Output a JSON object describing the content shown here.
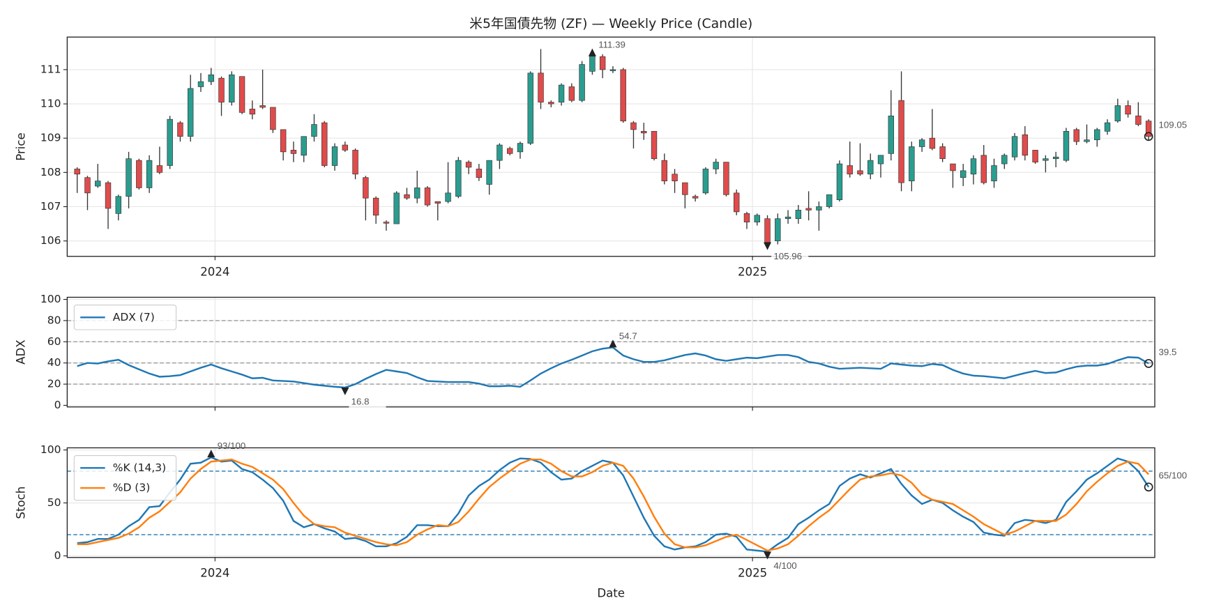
{
  "chart_data": [
    {
      "type": "candlestick",
      "title": "米5年国債先物 (ZF) — Weekly Price (Candle)",
      "ylabel": "Price",
      "up_color": "#2a9d8f",
      "down_color": "#e04b4b",
      "wick_color": "#333333",
      "grid": true,
      "xlim": [
        -0.97,
        104.6
      ],
      "xticks": [
        {
          "value": 13.38,
          "label": "2024"
        },
        {
          "value": 65.55,
          "label": "2025"
        }
      ],
      "ylim": [
        105.55,
        111.95
      ],
      "yticks": [
        106,
        107,
        108,
        109,
        110,
        111
      ],
      "open": [
        108.1,
        107.85,
        107.6,
        107.7,
        106.8,
        107.3,
        108.35,
        107.55,
        108.2,
        108.2,
        109.45,
        109.05,
        110.5,
        110.65,
        110.75,
        110.05,
        110.8,
        109.85,
        109.95,
        109.9,
        109.25,
        108.65,
        108.5,
        109.05,
        109.45,
        108.2,
        108.8,
        108.65,
        107.85,
        107.25,
        106.55,
        106.5,
        107.35,
        107.25,
        107.55,
        107.15,
        107.15,
        107.3,
        108.3,
        108.1,
        107.65,
        108.35,
        108.7,
        108.6,
        108.85,
        110.9,
        110.05,
        110.05,
        110.5,
        110.1,
        110.95,
        111.38,
        110.97,
        111.0,
        109.45,
        109.2,
        109.2,
        108.35,
        107.95,
        107.7,
        107.3,
        107.4,
        108.1,
        108.3,
        107.4,
        106.8,
        106.55,
        106.65,
        106.0,
        106.65,
        106.65,
        106.95,
        106.9,
        107.0,
        107.2,
        108.2,
        108.05,
        107.95,
        108.25,
        108.55,
        110.1,
        107.75,
        108.75,
        109.0,
        108.75,
        108.25,
        107.85,
        107.95,
        108.5,
        107.75,
        108.25,
        108.45,
        109.1,
        108.65,
        108.35,
        108.4,
        108.35,
        109.25,
        108.9,
        108.95,
        109.2,
        109.5,
        109.95,
        109.65,
        109.5
      ],
      "high": [
        108.15,
        107.9,
        108.25,
        107.75,
        107.35,
        108.6,
        108.4,
        108.5,
        108.75,
        109.65,
        109.5,
        110.85,
        110.9,
        111.05,
        110.8,
        110.95,
        110.8,
        110.1,
        111.0,
        109.9,
        109.25,
        108.9,
        109.05,
        109.7,
        109.5,
        108.85,
        108.9,
        108.7,
        107.9,
        107.3,
        106.6,
        107.45,
        107.55,
        108.05,
        107.6,
        107.15,
        108.3,
        108.45,
        108.35,
        108.25,
        108.35,
        108.85,
        108.75,
        108.9,
        110.95,
        111.6,
        110.1,
        110.6,
        110.6,
        111.25,
        111.6,
        111.45,
        111.1,
        111.05,
        109.5,
        109.45,
        109.2,
        108.55,
        108.1,
        107.7,
        107.35,
        108.15,
        108.4,
        108.3,
        107.5,
        106.85,
        106.8,
        106.75,
        106.8,
        106.9,
        107.05,
        107.45,
        107.15,
        107.35,
        108.35,
        108.9,
        108.85,
        108.55,
        108.5,
        110.4,
        110.95,
        108.9,
        109.0,
        109.85,
        108.85,
        108.25,
        108.25,
        108.5,
        108.8,
        108.4,
        108.55,
        109.15,
        109.35,
        108.65,
        108.5,
        108.6,
        109.3,
        109.3,
        109.4,
        109.3,
        109.55,
        110.15,
        110.1,
        110.05,
        109.55
      ],
      "low": [
        107.4,
        106.9,
        107.55,
        106.35,
        106.6,
        106.95,
        107.5,
        107.4,
        107.95,
        108.1,
        108.9,
        108.9,
        110.35,
        110.55,
        109.65,
        109.95,
        109.7,
        109.55,
        109.85,
        109.15,
        108.35,
        108.3,
        108.3,
        108.9,
        108.15,
        108.05,
        108.6,
        107.8,
        106.6,
        106.5,
        106.3,
        106.5,
        107.2,
        107.1,
        107.0,
        106.6,
        107.1,
        107.25,
        107.95,
        107.75,
        107.35,
        108.1,
        108.5,
        108.4,
        108.8,
        109.85,
        109.9,
        109.95,
        110.05,
        110.05,
        110.85,
        110.75,
        110.9,
        109.45,
        108.7,
        108.95,
        108.35,
        107.65,
        107.4,
        106.95,
        107.15,
        107.35,
        107.95,
        107.3,
        106.75,
        106.35,
        106.45,
        105.85,
        105.9,
        106.5,
        106.5,
        106.6,
        106.3,
        106.95,
        107.15,
        107.85,
        107.9,
        107.8,
        107.85,
        108.35,
        107.45,
        107.45,
        108.6,
        108.65,
        108.3,
        107.55,
        107.6,
        107.65,
        107.65,
        107.55,
        108.1,
        108.35,
        108.35,
        108.25,
        108.0,
        108.15,
        108.3,
        108.8,
        108.85,
        108.75,
        109.1,
        109.45,
        109.6,
        109.35,
        108.95
      ],
      "close": [
        107.95,
        107.4,
        107.75,
        106.95,
        107.3,
        108.4,
        107.55,
        108.35,
        108.0,
        109.55,
        109.05,
        110.45,
        110.65,
        110.85,
        110.05,
        110.85,
        109.75,
        109.7,
        109.9,
        109.25,
        108.6,
        108.55,
        109.05,
        109.4,
        108.2,
        108.75,
        108.65,
        107.95,
        107.25,
        106.75,
        106.52,
        107.4,
        107.25,
        107.55,
        107.05,
        107.1,
        107.4,
        108.35,
        108.15,
        107.85,
        108.35,
        108.8,
        108.55,
        108.85,
        110.9,
        110.05,
        110.0,
        110.55,
        110.1,
        111.15,
        111.39,
        111.0,
        111.0,
        109.5,
        109.25,
        109.15,
        108.4,
        107.75,
        107.75,
        107.35,
        107.25,
        108.1,
        108.3,
        107.35,
        106.85,
        106.55,
        106.75,
        105.96,
        106.65,
        106.7,
        106.9,
        106.9,
        107.0,
        107.35,
        108.25,
        107.95,
        107.95,
        108.35,
        108.5,
        109.65,
        107.7,
        108.75,
        108.95,
        108.7,
        108.4,
        108.05,
        108.05,
        108.4,
        107.7,
        108.2,
        108.5,
        109.05,
        108.5,
        108.3,
        108.4,
        108.45,
        109.2,
        108.9,
        108.95,
        109.25,
        109.45,
        109.95,
        109.7,
        109.4,
        109.05
      ],
      "annotations": {
        "max": "111.39",
        "min": "105.96",
        "last": "109.05"
      }
    },
    {
      "type": "line",
      "ylabel": "ADX",
      "grid": true,
      "legend": "upper left",
      "ylim": [
        -1.5,
        102
      ],
      "yticks": [
        0,
        20,
        40,
        60,
        80,
        100
      ],
      "hlines": {
        "values": [
          20,
          40,
          60,
          80
        ],
        "color": "#999999"
      },
      "series": [
        {
          "name": "ADX (7)",
          "color": "#1f77b4",
          "values": [
            37,
            40,
            39.5,
            41.5,
            43,
            38,
            34,
            30,
            27,
            27.5,
            28.5,
            32,
            35.5,
            38.5,
            35,
            32,
            29,
            25.5,
            26,
            23.5,
            23,
            22.5,
            21,
            19.5,
            18.5,
            17.5,
            16.8,
            20,
            25,
            29.5,
            33.5,
            32,
            30.5,
            26.5,
            23,
            22.5,
            22,
            22,
            22,
            20.5,
            18,
            18,
            18.5,
            17.5,
            23.5,
            30,
            35,
            39.5,
            43,
            47,
            51,
            53.5,
            54.7,
            47,
            43.5,
            41,
            41,
            42.5,
            45,
            47.5,
            49,
            47,
            43.5,
            42,
            43.5,
            45,
            44.5,
            46,
            47.5,
            47.5,
            45.5,
            41,
            39.5,
            36.5,
            34.5,
            35,
            35.5,
            35,
            34.5,
            39.5,
            38.5,
            37.5,
            37,
            39,
            38,
            33.5,
            30,
            28,
            27.5,
            26.5,
            25.5,
            28,
            30.5,
            32.5,
            30.5,
            31,
            34,
            36.5,
            37.5,
            37.5,
            39,
            42.5,
            45.5,
            45,
            39.5
          ]
        }
      ],
      "annotations": {
        "max": "54.7",
        "min": "16.8",
        "last": "39.5"
      }
    },
    {
      "type": "line",
      "ylabel": "Stoch",
      "xlabel": "Date",
      "grid": true,
      "legend": "upper left",
      "xticks": [
        {
          "value": 13.38,
          "label": "2024"
        },
        {
          "value": 65.55,
          "label": "2025"
        }
      ],
      "ylim": [
        -1.5,
        102
      ],
      "yticks": [
        0,
        50,
        100
      ],
      "hlines": {
        "values": [
          20,
          80
        ],
        "color": "#1f77b4"
      },
      "series": [
        {
          "name": "%K (14,3)",
          "color": "#1f77b4",
          "values": [
            12,
            13,
            16,
            16,
            20,
            28,
            34,
            46,
            47,
            60,
            72,
            87,
            88,
            93,
            89,
            90,
            82,
            79,
            72,
            64,
            52,
            33,
            27,
            30,
            26,
            23,
            16,
            17,
            14,
            9,
            9,
            12,
            18,
            29,
            29,
            28,
            28,
            40,
            57,
            66,
            72,
            81,
            88,
            92,
            91.5,
            88,
            79,
            72,
            73,
            80,
            85,
            90,
            88,
            76,
            56,
            36,
            19,
            9,
            6,
            8,
            9,
            13,
            20,
            21,
            18,
            6,
            5,
            4,
            11,
            17,
            30,
            36,
            43,
            49,
            66,
            73,
            77,
            74,
            78,
            82,
            68,
            57,
            49,
            53,
            50,
            43,
            37,
            32,
            22,
            20,
            19,
            31,
            34,
            33,
            31,
            34,
            51,
            61,
            72,
            78,
            85,
            92,
            89,
            80,
            65
          ]
        },
        {
          "name": "%D (3)",
          "color": "#ff7f0e",
          "values": [
            11,
            11,
            13,
            15,
            17,
            21,
            27,
            36,
            42,
            51,
            60,
            73,
            82,
            89,
            90,
            91,
            87,
            84,
            78,
            72,
            63,
            50,
            38,
            30,
            28,
            27,
            22,
            19,
            16,
            13,
            11,
            10,
            13,
            20,
            25,
            29,
            28,
            32,
            42,
            54,
            65,
            73,
            80,
            87,
            91,
            91,
            87,
            80,
            75,
            75,
            79,
            85,
            88,
            85,
            73,
            56,
            37,
            21,
            11,
            8,
            8,
            10,
            14,
            18,
            20,
            15,
            10,
            5,
            7,
            11,
            19,
            28,
            36,
            43,
            53,
            63,
            72,
            75,
            76,
            78,
            76,
            69,
            58,
            53,
            51,
            49,
            43,
            37,
            30,
            25,
            20,
            23,
            28,
            33,
            33,
            33,
            39,
            49,
            61,
            70,
            78,
            85,
            89,
            87,
            77
          ]
        }
      ],
      "annotations": {
        "max": "93/100",
        "min": "4/100",
        "last": "65/100"
      }
    }
  ]
}
